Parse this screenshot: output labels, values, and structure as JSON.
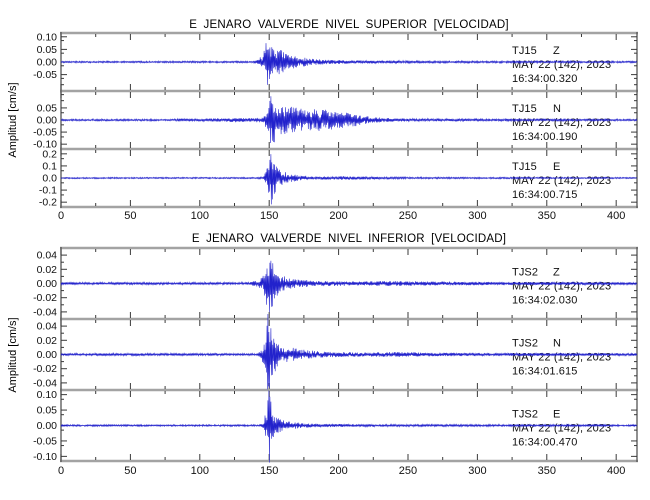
{
  "colors": {
    "trace": "#2222cc",
    "h_spine": "#a3a3a3",
    "v_spine": "#555555",
    "tick": "#3a3a3a",
    "text": "#000000",
    "background": "#ffffff"
  },
  "chart_data": [
    {
      "type": "line",
      "title": "E JENARO VALVERDE NIVEL SUPERIOR [VELOCIDAD]",
      "ylabel": "Amplitud [cm/s]",
      "xlabel": "",
      "xlim": [
        0,
        415
      ],
      "x_major_ticks": [
        0,
        50,
        100,
        150,
        200,
        250,
        300,
        350,
        400
      ],
      "x_tick_labels": [
        "0",
        "50",
        "100",
        "150",
        "200",
        "250",
        "300",
        "350",
        "400"
      ],
      "x_minor_step": 25,
      "grid": false,
      "legend_position": "none",
      "traces": [
        {
          "station": "TJ15",
          "component": "Z",
          "date": "MAY 22 (142), 2023",
          "time": "16:34:00.320",
          "y_major_ticks": [
            0.1,
            0.05,
            0.0,
            -0.05
          ],
          "y_tick_labels": [
            "0.10",
            "0.05",
            "0.00",
            "-0.05"
          ],
          "y_minor_step": 0.025,
          "ylim": 0.115,
          "clip": 1.0,
          "seed": 11,
          "envelope": [
            [
              0,
              0.0035
            ],
            [
              138,
              0.0035
            ],
            [
              142,
              0.008
            ],
            [
              145,
              0.03
            ],
            [
              148,
              0.09
            ],
            [
              151,
              0.095
            ],
            [
              154,
              0.07
            ],
            [
              158,
              0.05
            ],
            [
              163,
              0.035
            ],
            [
              170,
              0.022
            ],
            [
              180,
              0.013
            ],
            [
              195,
              0.008
            ],
            [
              220,
              0.006
            ],
            [
              270,
              0.0045
            ],
            [
              415,
              0.0035
            ]
          ]
        },
        {
          "station": "TJ15",
          "component": "N",
          "date": "MAY 22 (142), 2023",
          "time": "16:34:00.190",
          "y_major_ticks": [
            0.05,
            0.0,
            -0.05,
            -0.1
          ],
          "y_tick_labels": [
            "0.05",
            "0.00",
            "-0.05",
            "-0.10"
          ],
          "y_minor_step": 0.025,
          "ylim": 0.12,
          "clip": 1.0,
          "seed": 23,
          "envelope": [
            [
              0,
              0.004
            ],
            [
              80,
              0.004
            ],
            [
              90,
              0.007
            ],
            [
              100,
              0.005
            ],
            [
              115,
              0.008
            ],
            [
              128,
              0.01
            ],
            [
              138,
              0.008
            ],
            [
              146,
              0.012
            ],
            [
              149,
              0.06
            ],
            [
              151,
              0.115
            ],
            [
              154,
              0.09
            ],
            [
              158,
              0.065
            ],
            [
              165,
              0.055
            ],
            [
              172,
              0.05
            ],
            [
              182,
              0.048
            ],
            [
              192,
              0.042
            ],
            [
              203,
              0.035
            ],
            [
              213,
              0.025
            ],
            [
              222,
              0.015
            ],
            [
              232,
              0.009
            ],
            [
              250,
              0.006
            ],
            [
              300,
              0.005
            ],
            [
              415,
              0.004
            ]
          ]
        },
        {
          "station": "TJ15",
          "component": "E",
          "date": "MAY 22 (142), 2023",
          "time": "16:34:00.715",
          "y_major_ticks": [
            0.2,
            0.1,
            0.0,
            -0.1,
            -0.2
          ],
          "y_tick_labels": [
            "0.2",
            "0.1",
            "0.0",
            "-0.1",
            "-0.2"
          ],
          "y_minor_step": 0.05,
          "ylim": 0.24,
          "clip": 1.06,
          "seed": 37,
          "envelope": [
            [
              0,
              0.006
            ],
            [
              140,
              0.006
            ],
            [
              146,
              0.01
            ],
            [
              149,
              0.1
            ],
            [
              151,
              0.245
            ],
            [
              154,
              0.13
            ],
            [
              158,
              0.07
            ],
            [
              164,
              0.04
            ],
            [
              172,
              0.022
            ],
            [
              182,
              0.015
            ],
            [
              195,
              0.013
            ],
            [
              205,
              0.018
            ],
            [
              215,
              0.012
            ],
            [
              235,
              0.009
            ],
            [
              280,
              0.007
            ],
            [
              415,
              0.006
            ]
          ]
        }
      ]
    },
    {
      "type": "line",
      "title": "E JENARO VALVERDE NIVEL INFERIOR [VELOCIDAD]",
      "ylabel": "Amplitud [cm/s]",
      "xlabel": "",
      "xlim": [
        0,
        415
      ],
      "x_major_ticks": [
        0,
        50,
        100,
        150,
        200,
        250,
        300,
        350,
        400
      ],
      "x_tick_labels": [
        "0",
        "50",
        "100",
        "150",
        "200",
        "250",
        "300",
        "350",
        "400"
      ],
      "x_minor_step": 25,
      "grid": false,
      "legend_position": "none",
      "traces": [
        {
          "station": "TJS2",
          "component": "Z",
          "date": "MAY 22 (142), 2023",
          "time": "16:34:02.030",
          "y_major_ticks": [
            0.04,
            0.02,
            0.0,
            -0.02,
            -0.04
          ],
          "y_tick_labels": [
            "0.04",
            "0.02",
            "0.00",
            "-0.02",
            "-0.04"
          ],
          "y_minor_step": 0.01,
          "ylim": 0.05,
          "clip": 1.0,
          "seed": 51,
          "envelope": [
            [
              0,
              0.0018
            ],
            [
              136,
              0.0018
            ],
            [
              139,
              0.006
            ],
            [
              142,
              0.004
            ],
            [
              146,
              0.012
            ],
            [
              148,
              0.03
            ],
            [
              150,
              0.048
            ],
            [
              153,
              0.028
            ],
            [
              157,
              0.014
            ],
            [
              162,
              0.009
            ],
            [
              170,
              0.006
            ],
            [
              185,
              0.004
            ],
            [
              215,
              0.003
            ],
            [
              235,
              0.0035
            ],
            [
              260,
              0.003
            ],
            [
              300,
              0.0025
            ],
            [
              415,
              0.0018
            ]
          ]
        },
        {
          "station": "TJS2",
          "component": "N",
          "date": "MAY 22 (142), 2023",
          "time": "16:34:01.615",
          "y_major_ticks": [
            0.04,
            0.02,
            0.0,
            -0.02,
            -0.04
          ],
          "y_tick_labels": [
            "0.04",
            "0.02",
            "0.00",
            "-0.02",
            "-0.04"
          ],
          "y_minor_step": 0.01,
          "ylim": 0.05,
          "clip": 1.3,
          "seed": 67,
          "envelope": [
            [
              0,
              0.0018
            ],
            [
              140,
              0.0018
            ],
            [
              144,
              0.005
            ],
            [
              147,
              0.02
            ],
            [
              149,
              0.062
            ],
            [
              152,
              0.035
            ],
            [
              156,
              0.018
            ],
            [
              161,
              0.012
            ],
            [
              168,
              0.009
            ],
            [
              178,
              0.006
            ],
            [
              190,
              0.004
            ],
            [
              215,
              0.003
            ],
            [
              240,
              0.0035
            ],
            [
              270,
              0.0025
            ],
            [
              415,
              0.0018
            ]
          ]
        },
        {
          "station": "TJS2",
          "component": "E",
          "date": "MAY 22 (142), 2023",
          "time": "16:34:00.470",
          "y_major_ticks": [
            0.1,
            0.05,
            0.0,
            -0.05,
            -0.1
          ],
          "y_tick_labels": [
            "0.10",
            "0.05",
            "0.00",
            "-0.05",
            "-0.10"
          ],
          "y_minor_step": 0.025,
          "ylim": 0.115,
          "clip": 1.12,
          "seed": 83,
          "envelope": [
            [
              0,
              0.003
            ],
            [
              142,
              0.003
            ],
            [
              146,
              0.008
            ],
            [
              148,
              0.06
            ],
            [
              150,
              0.13
            ],
            [
              152,
              0.05
            ],
            [
              156,
              0.025
            ],
            [
              162,
              0.015
            ],
            [
              170,
              0.01
            ],
            [
              180,
              0.007
            ],
            [
              195,
              0.005
            ],
            [
              230,
              0.004
            ],
            [
              415,
              0.003
            ]
          ]
        }
      ]
    }
  ]
}
